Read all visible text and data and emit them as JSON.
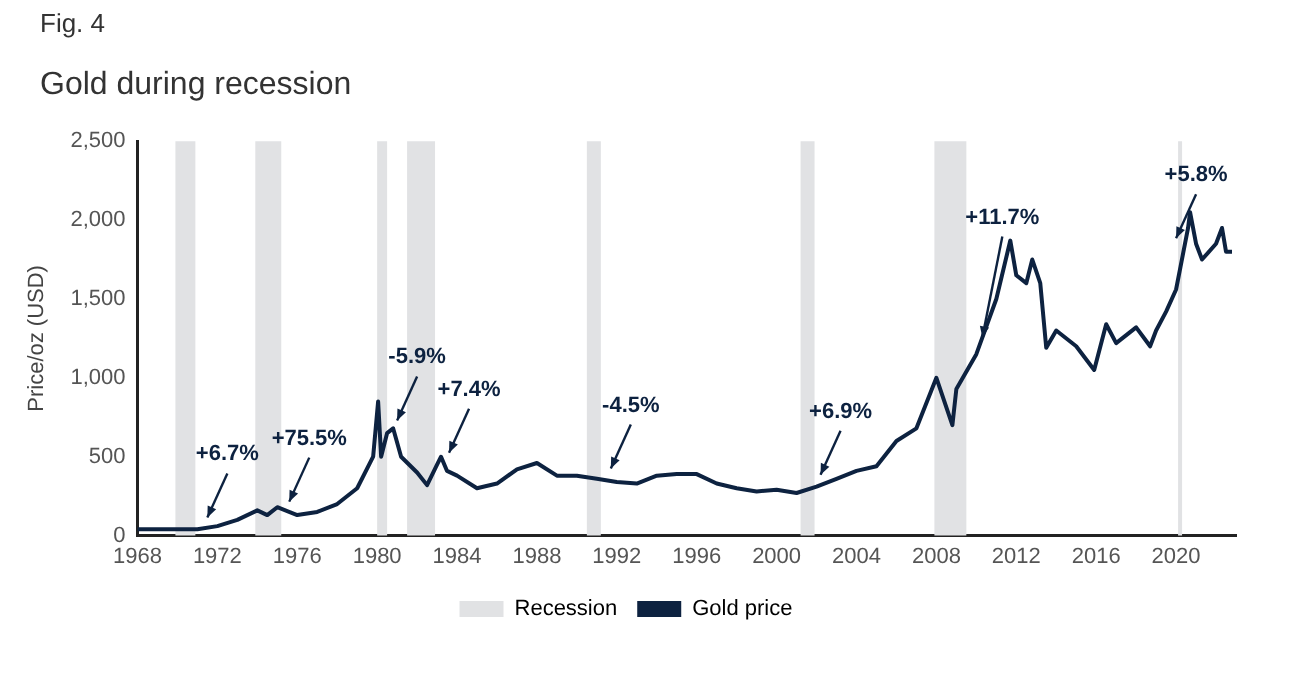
{
  "chart_data": {
    "type": "line",
    "subtitle": "Fig. 4",
    "title": "Gold during recession",
    "ylabel": "Price/oz (USD)",
    "xlim": [
      1968,
      2023
    ],
    "xticks": [
      1968,
      1972,
      1976,
      1980,
      1984,
      1988,
      1992,
      1996,
      2000,
      2004,
      2008,
      2012,
      2016,
      2020
    ],
    "ylim": [
      0,
      2500
    ],
    "yticks": [
      0,
      500,
      {
        "value": 1000,
        "label": "1,000"
      },
      {
        "value": 1500,
        "label": "1,500"
      },
      {
        "value": 2000,
        "label": "2,000"
      },
      {
        "value": 2500,
        "label": "2,500"
      }
    ],
    "grid": false,
    "legend": "bottom",
    "marker": "none",
    "line_style": "solid",
    "x": [
      1968,
      1970,
      1971,
      1972,
      1973,
      1974,
      1974.5,
      1975,
      1976,
      1977,
      1978,
      1979,
      1979.8,
      1980.05,
      1980.2,
      1980.5,
      1980.8,
      1981.2,
      1982,
      1982.5,
      1983,
      1983.2,
      1983.5,
      1984,
      1985,
      1986,
      1987,
      1988,
      1989,
      1990,
      1991,
      1992,
      1993,
      1994,
      1995,
      1996,
      1997,
      1998,
      1999,
      2000,
      2001,
      2002,
      2003,
      2004,
      2005,
      2006,
      2007,
      2008,
      2008.8,
      2009,
      2010,
      2011,
      2011.7,
      2012,
      2012.5,
      2012.8,
      2013.2,
      2013.5,
      2014,
      2015,
      2015.9,
      2016.5,
      2017,
      2018,
      2018.7,
      2019,
      2019.5,
      2020,
      2020.6,
      2020.7,
      2021,
      2021.3,
      2022,
      2022.3,
      2022.5,
      2022.8
    ],
    "series": [
      {
        "name": "Gold price",
        "color": "#0d2240",
        "values": [
          40,
          40,
          40,
          60,
          100,
          160,
          130,
          180,
          130,
          150,
          200,
          300,
          500,
          850,
          500,
          650,
          680,
          500,
          400,
          320,
          450,
          500,
          410,
          380,
          300,
          330,
          420,
          460,
          380,
          380,
          360,
          340,
          330,
          380,
          390,
          390,
          330,
          300,
          280,
          290,
          270,
          310,
          360,
          410,
          440,
          600,
          680,
          1000,
          700,
          930,
          1150,
          1500,
          1870,
          1650,
          1600,
          1750,
          1600,
          1190,
          1300,
          1200,
          1050,
          1340,
          1220,
          1320,
          1200,
          1300,
          1420,
          1560,
          1950,
          2050,
          1850,
          1750,
          1850,
          1950,
          1800,
          1800
        ]
      }
    ],
    "bands": [
      {
        "axis": "x",
        "from": 1969.9,
        "to": 1970.9,
        "label": "Recession",
        "color": "#e1e2e4"
      },
      {
        "axis": "x",
        "from": 1973.9,
        "to": 1975.2,
        "color": "#e1e2e4"
      },
      {
        "axis": "x",
        "from": 1980.0,
        "to": 1980.5,
        "color": "#e1e2e4"
      },
      {
        "axis": "x",
        "from": 1981.5,
        "to": 1982.9,
        "color": "#e1e2e4"
      },
      {
        "axis": "x",
        "from": 1990.5,
        "to": 1991.2,
        "color": "#e1e2e4"
      },
      {
        "axis": "x",
        "from": 2001.2,
        "to": 2001.9,
        "color": "#e1e2e4"
      },
      {
        "axis": "x",
        "from": 2007.9,
        "to": 2009.5,
        "color": "#e1e2e4"
      },
      {
        "axis": "x",
        "from": 2020.1,
        "to": 2020.3,
        "color": "#e1e2e4"
      }
    ],
    "annotations": [
      {
        "text": "+6.7%",
        "x": 1971.5,
        "y": 90
      },
      {
        "text": "+75.5%",
        "x": 1975.6,
        "y": 190
      },
      {
        "text": "-5.9%",
        "x": 1981.0,
        "y": 705
      },
      {
        "text": "+7.4%",
        "x": 1983.6,
        "y": 500
      },
      {
        "text": "-4.5%",
        "x": 1991.7,
        "y": 400
      },
      {
        "text": "+6.9%",
        "x": 2002.2,
        "y": 360
      },
      {
        "text": "+11.7%",
        "x": 2010.3,
        "y": 1230
      },
      {
        "text": "+5.8%",
        "x": 2020.0,
        "y": 1860
      }
    ]
  }
}
